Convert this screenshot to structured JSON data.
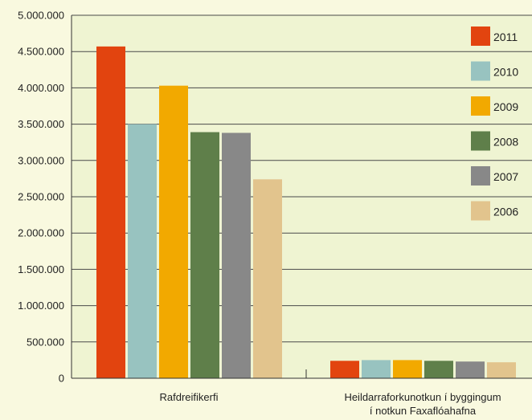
{
  "chart_data": {
    "type": "bar",
    "categories": [
      "Rafdreifikerfi",
      "Heildarraforkunotkun í byggingum|í notkun Faxaflóahafna"
    ],
    "series": [
      {
        "name": "2011",
        "color": "#e2440f",
        "values": [
          4570000,
          240000
        ]
      },
      {
        "name": "2010",
        "color": "#98c3c0",
        "values": [
          3500000,
          250000
        ]
      },
      {
        "name": "2009",
        "color": "#f2a900",
        "values": [
          4030000,
          250000
        ]
      },
      {
        "name": "2008",
        "color": "#5f7f4a",
        "values": [
          3390000,
          240000
        ]
      },
      {
        "name": "2007",
        "color": "#888888",
        "values": [
          3380000,
          230000
        ]
      },
      {
        "name": "2006",
        "color": "#e2c48d",
        "values": [
          2740000,
          220000
        ]
      }
    ],
    "yticks": [
      "0",
      "500.000",
      "1.000.000",
      "1.500.000",
      "2.000.000",
      "2.500.000",
      "3.000.000",
      "3.500.000",
      "4.000.000",
      "4.500.000",
      "5.000.000"
    ],
    "ylim": [
      0,
      5000000
    ],
    "grid": true,
    "legend_position": "top-right"
  }
}
